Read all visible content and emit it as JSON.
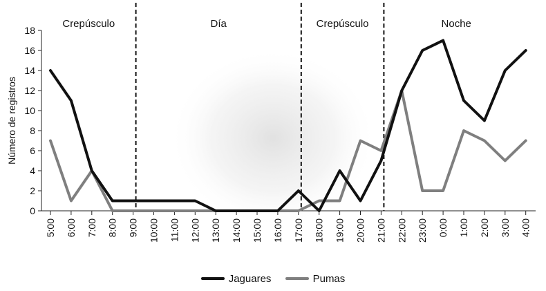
{
  "chart_data": {
    "type": "line",
    "ylabel": "Número de registros",
    "xlabel": "",
    "ylim": [
      0,
      18
    ],
    "yticks": [
      0,
      2,
      4,
      6,
      8,
      10,
      12,
      14,
      16,
      18
    ],
    "grid": false,
    "legend_position": "bottom",
    "categories": [
      "5:00",
      "6:00",
      "7:00",
      "8:00",
      "9:00",
      "10:00",
      "11:00",
      "12:00",
      "13:00",
      "14:00",
      "15:00",
      "16:00",
      "17:00",
      "18:00",
      "19:00",
      "20:00",
      "21:00",
      "22:00",
      "23:00",
      "0:00",
      "1:00",
      "2:00",
      "3:00",
      "4:00"
    ],
    "series": [
      {
        "name": "Jaguares",
        "color": "#111111",
        "values": [
          14,
          11,
          4,
          1,
          1,
          1,
          1,
          1,
          0,
          0,
          0,
          0,
          2,
          0,
          4,
          1,
          5,
          12,
          16,
          17,
          11,
          9,
          14,
          16
        ]
      },
      {
        "name": "Pumas",
        "color": "#7f7f7f",
        "values": [
          7,
          1,
          4,
          0,
          0,
          0,
          0,
          0,
          0,
          0,
          0,
          0,
          0,
          1,
          1,
          7,
          6,
          12,
          2,
          2,
          8,
          7,
          5,
          7
        ]
      }
    ],
    "period_boundaries": [
      4,
      12,
      16
    ],
    "periods": [
      {
        "label": "Crepúsculo",
        "from": 0,
        "to": 4
      },
      {
        "label": "Día",
        "from": 4,
        "to": 12
      },
      {
        "label": "Crepúsculo",
        "from": 12,
        "to": 16
      },
      {
        "label": "Noche",
        "from": 16,
        "to": 23
      }
    ]
  }
}
